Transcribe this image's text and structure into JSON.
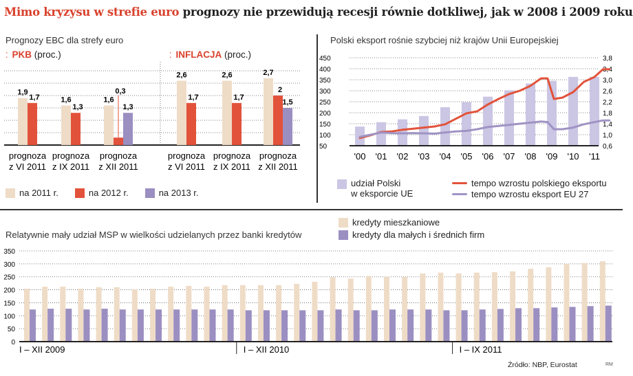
{
  "title": {
    "highlight": "Mimo kryzysu w strefie euro",
    "rest": " prognozy nie przewidują recesji równie dotkliwej, jak w 2008 i 2009 roku"
  },
  "colors": {
    "beige": "#efdcc7",
    "red": "#e2523b",
    "purple": "#9b8fc1",
    "light_purple": "#cac6e3",
    "accent": "#d9412c"
  },
  "source": "Źródło: NBP, Eurostat",
  "author": "RM",
  "chart_data": [
    {
      "id": "ebc",
      "type": "bar",
      "title": "Prognozy EBC dla strefy euro",
      "ylim": [
        0,
        3
      ],
      "grid": true,
      "legend": {
        "placement": "bottom",
        "entries": [
          "na 2011 r.",
          "na 2012 r.",
          "na 2013 r."
        ]
      },
      "panels": [
        {
          "label": "PKB",
          "unit": "(proc.)",
          "categories": [
            [
              "prognoza",
              "z VI 2011"
            ],
            [
              "prognoza",
              "z IX 2011"
            ],
            [
              "prognoza",
              "z XII 2011"
            ]
          ],
          "series": [
            {
              "name": "na 2011 r.",
              "values": [
                1.9,
                1.6,
                1.6
              ],
              "labels": [
                "1,9",
                "1,6",
                "1,6"
              ]
            },
            {
              "name": "na 2012 r.",
              "values": [
                1.7,
                1.3,
                0.3
              ],
              "labels": [
                "1,7",
                "1,3",
                "0,3"
              ]
            },
            {
              "name": "na 2013 r.",
              "values": [
                null,
                null,
                1.3
              ],
              "labels": [
                null,
                null,
                "1,3"
              ]
            }
          ]
        },
        {
          "label": "INFLACJA",
          "unit": "(proc.)",
          "categories": [
            [
              "prognoza",
              "z VI 2011"
            ],
            [
              "prognoza",
              "z IX 2011"
            ],
            [
              "prognoza",
              "z XII 2011"
            ]
          ],
          "series": [
            {
              "name": "na 2011 r.",
              "values": [
                2.6,
                2.6,
                2.7
              ],
              "labels": [
                "2,6",
                "2,6",
                "2,7"
              ]
            },
            {
              "name": "na 2012 r.",
              "values": [
                1.7,
                1.7,
                2.0
              ],
              "labels": [
                "1,7",
                "1,7",
                "2"
              ]
            },
            {
              "name": "na 2013 r.",
              "values": [
                null,
                null,
                1.5
              ],
              "labels": [
                null,
                null,
                "1,5"
              ]
            }
          ]
        }
      ]
    },
    {
      "id": "export",
      "type": "bar+line",
      "title": "Polski eksport rośnie szybciej niż krajów Unii Europejskiej",
      "categories": [
        "'00",
        "'01",
        "'02",
        "'03",
        "'04",
        "'05",
        "'06",
        "'07",
        "'08",
        "'09",
        "'10",
        "'11"
      ],
      "y_left": {
        "range": [
          50,
          450
        ],
        "ticks": [
          "450",
          "400",
          "350",
          "300",
          "250",
          "200",
          "150",
          "100",
          "50"
        ]
      },
      "y_right": {
        "range": [
          0.6,
          3.8
        ],
        "ticks": [
          "3,8",
          "3,4",
          "3,0",
          "2,6",
          "2,2",
          "1,8",
          "1,4",
          "1,0",
          "0,6"
        ]
      },
      "grid": true,
      "bars": {
        "name": "udział Polski w eksporcie UE",
        "name_lines": [
          "udział Polski",
          "w eksporcie UE"
        ],
        "axis": "left",
        "values": [
          137,
          157,
          170,
          185,
          225,
          248,
          273,
          302,
          333,
          345,
          363,
          363
        ]
      },
      "lines": [
        {
          "name": "tempo wzrostu polskiego eksportu",
          "axis": "right",
          "x": [
            2000.0,
            2000.5,
            2001.0,
            2001.5,
            2002.0,
            2002.5,
            2003.0,
            2003.5,
            2004.0,
            2004.5,
            2005.0,
            2005.5,
            2006.0,
            2006.5,
            2007.0,
            2007.5,
            2008.0,
            2008.5,
            2008.8,
            2009.1,
            2009.5,
            2010.0,
            2010.5,
            2011.0,
            2011.4,
            2011.7
          ],
          "y": [
            0.88,
            0.98,
            1.1,
            1.12,
            1.18,
            1.22,
            1.26,
            1.3,
            1.38,
            1.58,
            1.78,
            1.85,
            2.1,
            2.3,
            2.48,
            2.6,
            2.78,
            3.05,
            3.05,
            2.3,
            2.35,
            2.55,
            2.92,
            3.1,
            3.38,
            3.38
          ]
        },
        {
          "name": "tempo wzrostu eksport EU 27",
          "axis": "right",
          "x": [
            2000.0,
            2000.5,
            2001.0,
            2001.5,
            2002.0,
            2002.5,
            2003.0,
            2003.5,
            2004.0,
            2004.5,
            2005.0,
            2005.5,
            2006.0,
            2006.5,
            2007.0,
            2007.5,
            2008.0,
            2008.5,
            2008.8,
            2009.1,
            2009.5,
            2010.0,
            2010.5,
            2011.0,
            2011.4,
            2011.7
          ],
          "y": [
            0.92,
            1.0,
            1.08,
            1.06,
            1.05,
            1.06,
            1.05,
            1.04,
            1.08,
            1.12,
            1.14,
            1.2,
            1.28,
            1.32,
            1.36,
            1.4,
            1.44,
            1.48,
            1.46,
            1.2,
            1.2,
            1.26,
            1.38,
            1.46,
            1.52,
            1.52
          ]
        }
      ]
    },
    {
      "id": "credit",
      "type": "bar",
      "title": "Relatywnie mały udział MSP w wielkości udzielanych przez banki kredytów",
      "ylim": [
        0,
        350
      ],
      "y_ticks": [
        "350",
        "300",
        "250",
        "200",
        "150",
        "100",
        "50",
        "0"
      ],
      "grid": true,
      "periods": [
        {
          "label": "I – XII 2009",
          "months": 12
        },
        {
          "label": "I – XII 2010",
          "months": 12
        },
        {
          "label": "I – IX 2011",
          "months": 9
        }
      ],
      "legend": {
        "placement": "top-right"
      },
      "series": [
        {
          "name": "kredyty mieszkaniowe",
          "values": [
            204,
            212,
            212,
            204,
            210,
            210,
            202,
            204,
            212,
            215,
            212,
            218,
            218,
            218,
            218,
            223,
            231,
            248,
            243,
            253,
            250,
            250,
            263,
            266,
            263,
            266,
            268,
            271,
            281,
            287,
            300,
            303,
            310
          ]
        },
        {
          "name": "kredyty dla małych i średnich firm",
          "values": [
            124,
            127,
            127,
            124,
            127,
            124,
            124,
            124,
            124,
            124,
            124,
            124,
            121,
            121,
            121,
            121,
            121,
            124,
            121,
            121,
            124,
            124,
            124,
            121,
            121,
            124,
            126,
            129,
            129,
            132,
            134,
            137,
            139
          ]
        }
      ]
    }
  ]
}
